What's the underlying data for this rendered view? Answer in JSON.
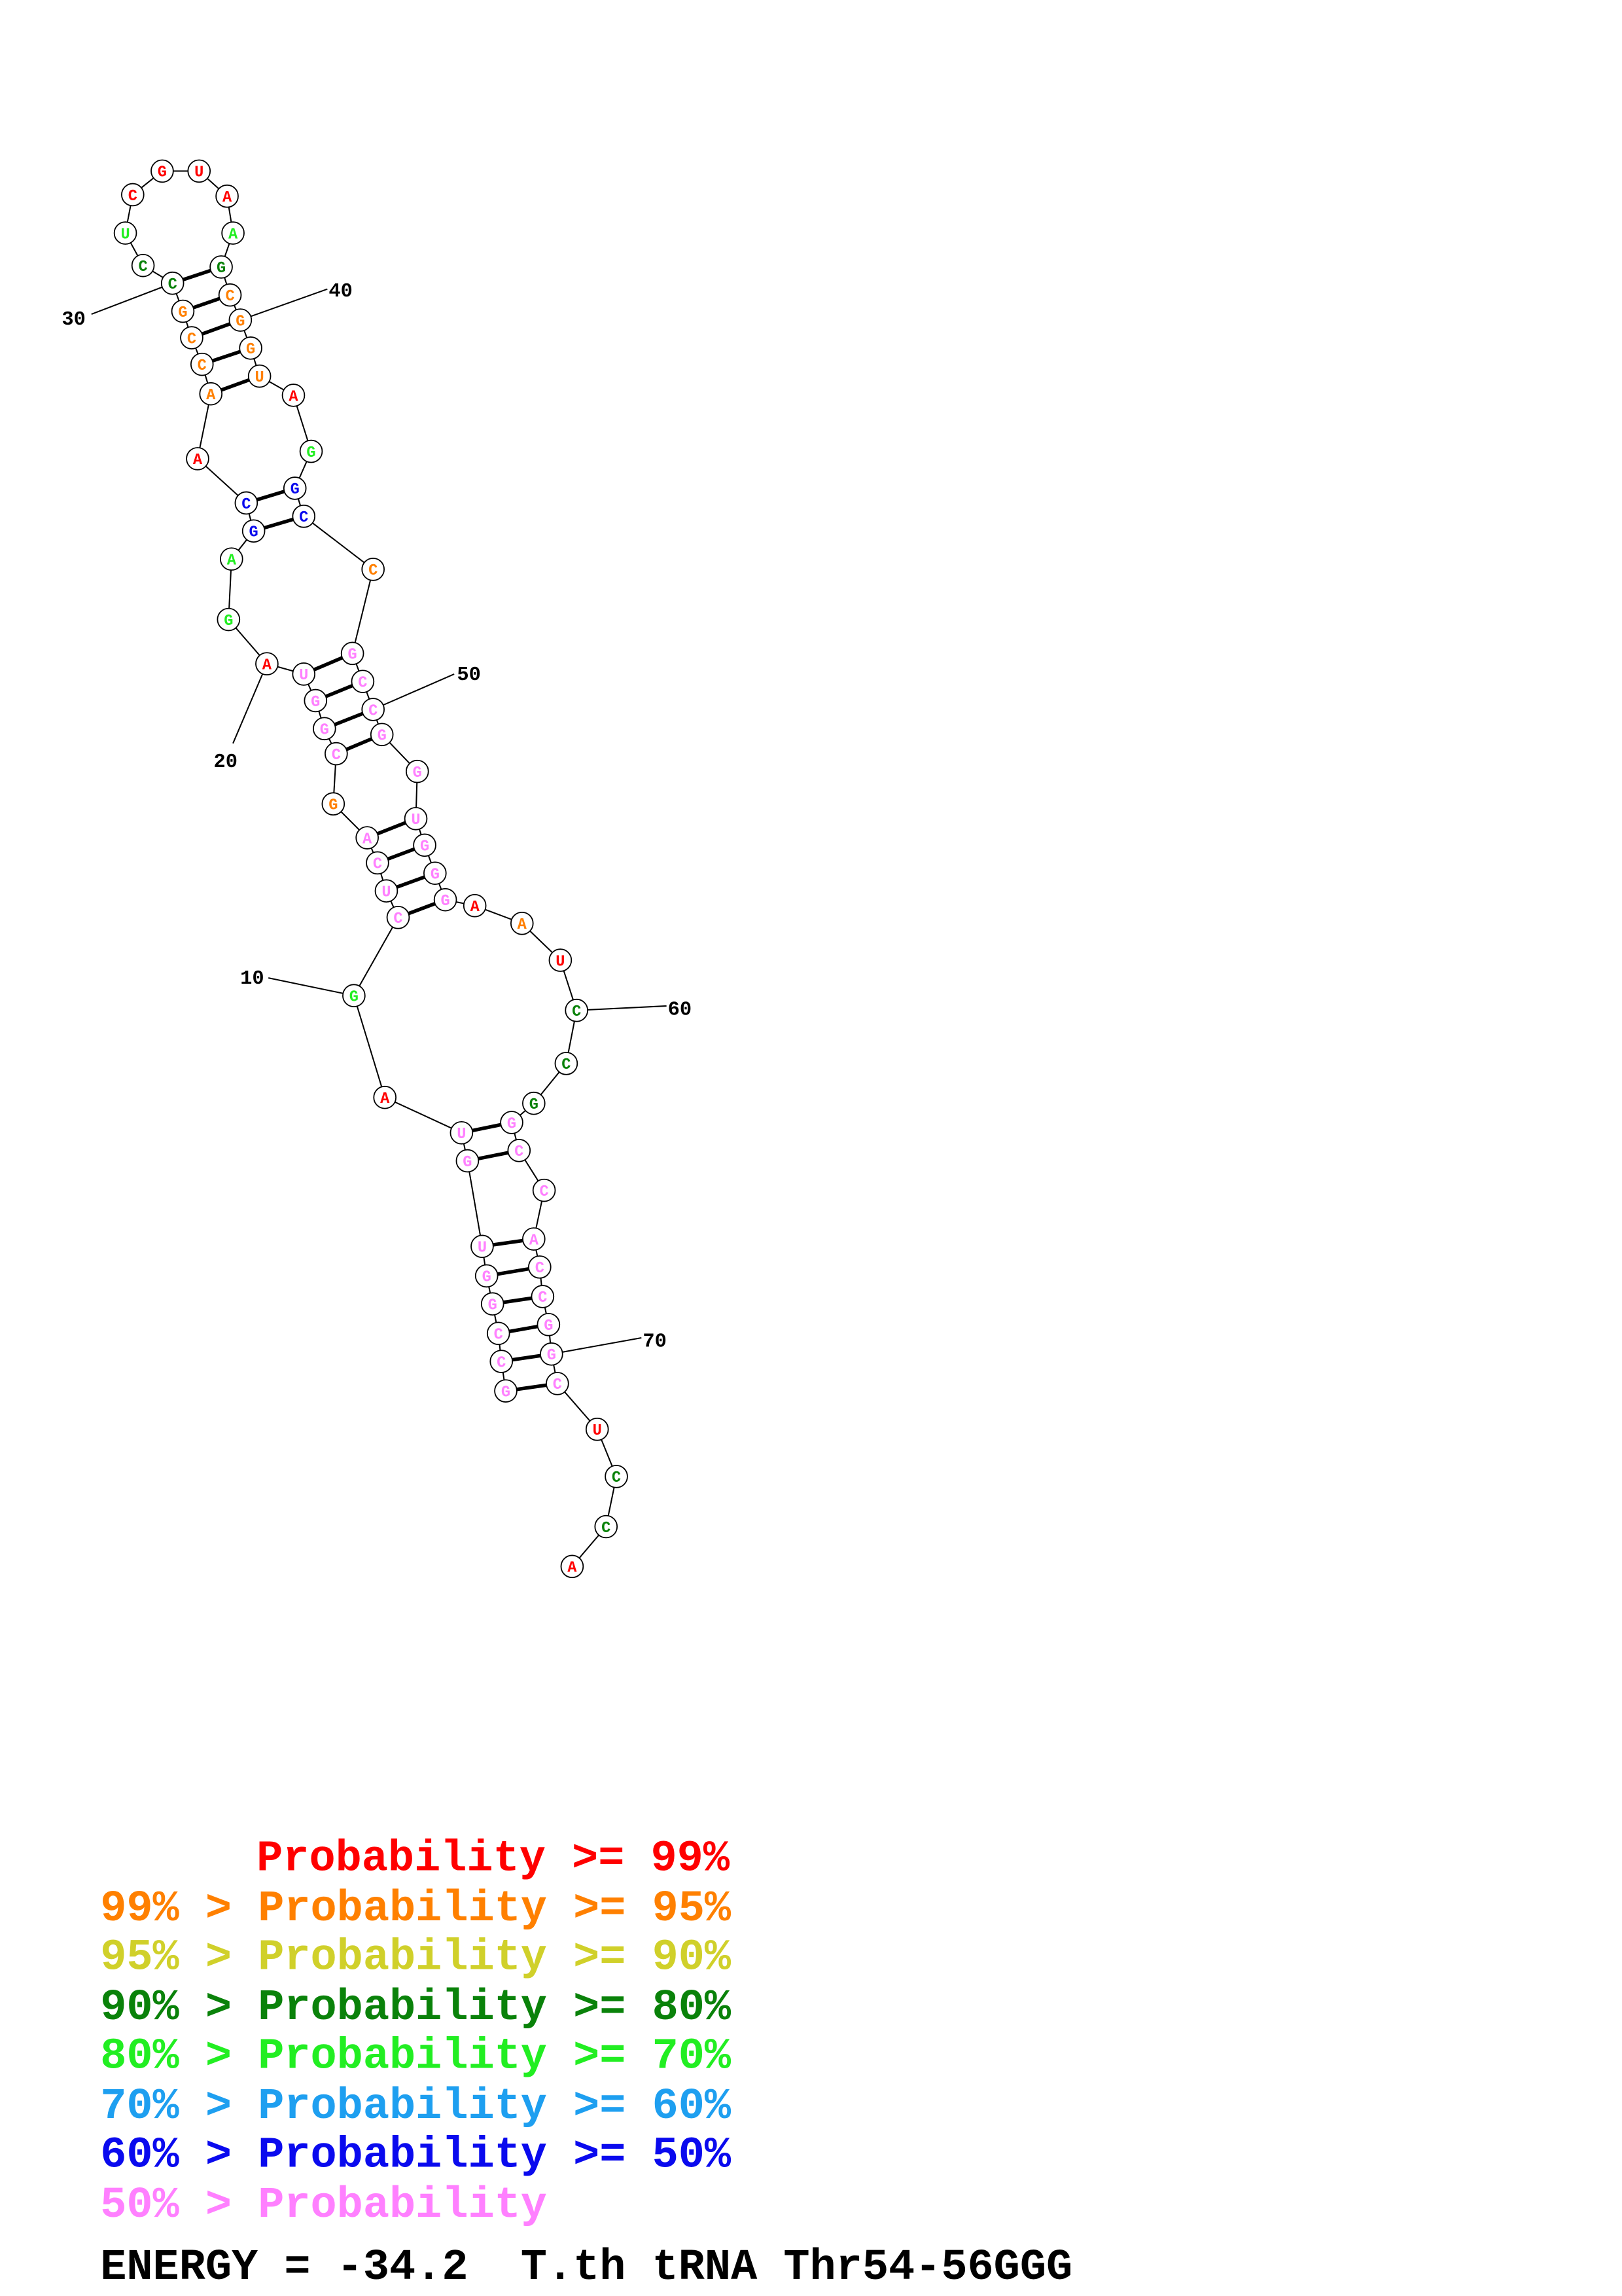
{
  "palette": {
    "red": "#ff0000",
    "orange": "#ff8000",
    "yellow": "#d0d02a",
    "darkgreen": "#0a820a",
    "green": "#22ee22",
    "lightblue": "#1e9ff0",
    "blue": "#0a0aee",
    "pink": "#ff80ff"
  },
  "nucleotides": [
    {
      "base": "G",
      "color": "pink"
    },
    {
      "base": "C",
      "color": "pink"
    },
    {
      "base": "C",
      "color": "pink"
    },
    {
      "base": "G",
      "color": "pink"
    },
    {
      "base": "G",
      "color": "pink"
    },
    {
      "base": "U",
      "color": "pink"
    },
    {
      "base": "G",
      "color": "pink"
    },
    {
      "base": "U",
      "color": "pink"
    },
    {
      "base": "A",
      "color": "red"
    },
    {
      "base": "G",
      "color": "green"
    },
    {
      "base": "C",
      "color": "pink"
    },
    {
      "base": "U",
      "color": "pink"
    },
    {
      "base": "C",
      "color": "pink"
    },
    {
      "base": "A",
      "color": "pink"
    },
    {
      "base": "G",
      "color": "orange"
    },
    {
      "base": "C",
      "color": "pink"
    },
    {
      "base": "G",
      "color": "pink"
    },
    {
      "base": "G",
      "color": "pink"
    },
    {
      "base": "U",
      "color": "pink"
    },
    {
      "base": "A",
      "color": "red"
    },
    {
      "base": "G",
      "color": "green"
    },
    {
      "base": "A",
      "color": "green"
    },
    {
      "base": "G",
      "color": "blue"
    },
    {
      "base": "C",
      "color": "blue"
    },
    {
      "base": "A",
      "color": "red"
    },
    {
      "base": "A",
      "color": "orange"
    },
    {
      "base": "C",
      "color": "orange"
    },
    {
      "base": "C",
      "color": "orange"
    },
    {
      "base": "G",
      "color": "orange"
    },
    {
      "base": "C",
      "color": "darkgreen"
    },
    {
      "base": "C",
      "color": "darkgreen"
    },
    {
      "base": "U",
      "color": "green"
    },
    {
      "base": "C",
      "color": "red"
    },
    {
      "base": "G",
      "color": "red"
    },
    {
      "base": "U",
      "color": "red"
    },
    {
      "base": "A",
      "color": "red"
    },
    {
      "base": "A",
      "color": "green"
    },
    {
      "base": "G",
      "color": "darkgreen"
    },
    {
      "base": "C",
      "color": "orange"
    },
    {
      "base": "G",
      "color": "orange"
    },
    {
      "base": "G",
      "color": "orange"
    },
    {
      "base": "U",
      "color": "orange"
    },
    {
      "base": "A",
      "color": "red"
    },
    {
      "base": "G",
      "color": "green"
    },
    {
      "base": "G",
      "color": "blue"
    },
    {
      "base": "C",
      "color": "blue"
    },
    {
      "base": "C",
      "color": "orange"
    },
    {
      "base": "G",
      "color": "pink"
    },
    {
      "base": "C",
      "color": "pink"
    },
    {
      "base": "C",
      "color": "pink"
    },
    {
      "base": "G",
      "color": "pink"
    },
    {
      "base": "G",
      "color": "pink"
    },
    {
      "base": "U",
      "color": "pink"
    },
    {
      "base": "G",
      "color": "pink"
    },
    {
      "base": "G",
      "color": "pink"
    },
    {
      "base": "G",
      "color": "pink"
    },
    {
      "base": "A",
      "color": "red"
    },
    {
      "base": "A",
      "color": "orange"
    },
    {
      "base": "U",
      "color": "red"
    },
    {
      "base": "C",
      "color": "darkgreen"
    },
    {
      "base": "C",
      "color": "darkgreen"
    },
    {
      "base": "G",
      "color": "darkgreen"
    },
    {
      "base": "G",
      "color": "pink"
    },
    {
      "base": "C",
      "color": "pink"
    },
    {
      "base": "C",
      "color": "pink"
    },
    {
      "base": "A",
      "color": "pink"
    },
    {
      "base": "C",
      "color": "pink"
    },
    {
      "base": "C",
      "color": "pink"
    },
    {
      "base": "G",
      "color": "pink"
    },
    {
      "base": "G",
      "color": "pink"
    },
    {
      "base": "C",
      "color": "pink"
    },
    {
      "base": "U",
      "color": "red"
    },
    {
      "base": "C",
      "color": "darkgreen"
    },
    {
      "base": "C",
      "color": "darkgreen"
    },
    {
      "base": "A",
      "color": "red"
    }
  ],
  "base_pairs": [
    [
      1,
      71
    ],
    [
      2,
      70
    ],
    [
      3,
      69
    ],
    [
      4,
      68
    ],
    [
      5,
      67
    ],
    [
      6,
      66
    ],
    [
      7,
      64
    ],
    [
      8,
      63
    ],
    [
      11,
      56
    ],
    [
      12,
      55
    ],
    [
      13,
      54
    ],
    [
      14,
      53
    ],
    [
      16,
      51
    ],
    [
      17,
      50
    ],
    [
      18,
      49
    ],
    [
      19,
      48
    ],
    [
      23,
      46
    ],
    [
      24,
      45
    ],
    [
      26,
      42
    ],
    [
      27,
      41
    ],
    [
      28,
      40
    ],
    [
      29,
      39
    ],
    [
      30,
      38
    ]
  ],
  "position_labels": [
    "10",
    "20",
    "30",
    "40",
    "50",
    "60",
    "70"
  ],
  "legend": [
    {
      "text": "Probability >= 99%",
      "color": "red"
    },
    {
      "text": "99% > Probability >= 95%",
      "color": "orange"
    },
    {
      "text": "95% > Probability >= 90%",
      "color": "yellow"
    },
    {
      "text": "90% > Probability >= 80%",
      "color": "darkgreen"
    },
    {
      "text": "80% > Probability >= 70%",
      "color": "green"
    },
    {
      "text": "70% > Probability >= 60%",
      "color": "lightblue"
    },
    {
      "text": "60% > Probability >= 50%",
      "color": "blue"
    },
    {
      "text": "50% > Probability",
      "color": "pink"
    }
  ],
  "caption": "ENERGY = -34.2  T.th tRNA Thr54-56GGG"
}
